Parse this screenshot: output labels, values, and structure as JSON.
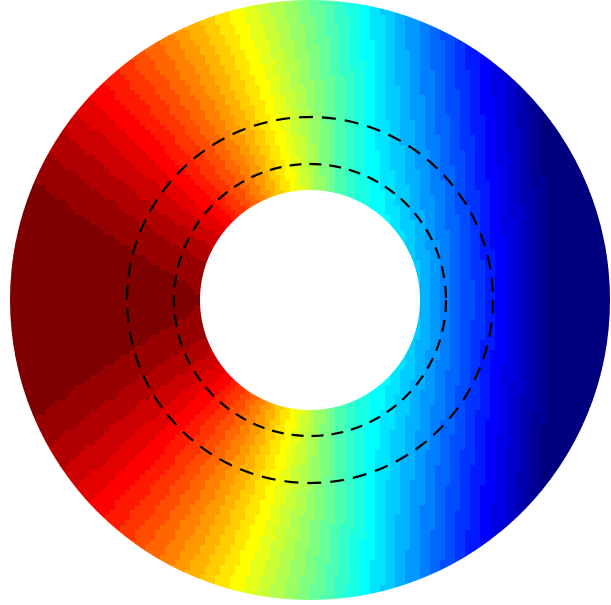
{
  "figure": {
    "type": "annular-contour-field",
    "colormap": "jet",
    "colormap_stops": [
      "#00007f",
      "#0000ff",
      "#007fff",
      "#00ffff",
      "#7fff7f",
      "#ffff00",
      "#ff7f00",
      "#ff0000",
      "#7f0000"
    ],
    "contour_levels": 40,
    "hole_color": "#ffffff",
    "dashed_circle_count": 2,
    "dashed_circle_color": "#000000"
  }
}
